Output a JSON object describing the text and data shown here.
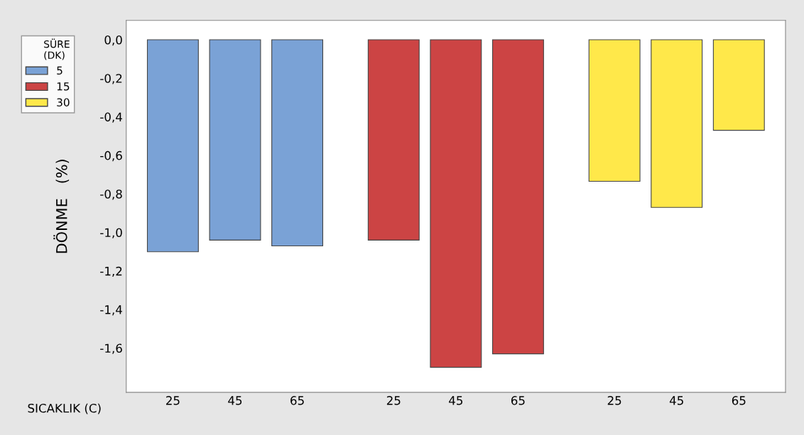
{
  "chart_data": {
    "type": "bar",
    "categories": [
      "25",
      "45",
      "65",
      "25",
      "45",
      "65",
      "25",
      "45",
      "65"
    ],
    "series": [
      {
        "name": "5",
        "color": "#7aa2d6",
        "values": [
          -1.1,
          -1.04,
          -1.07,
          null,
          null,
          null,
          null,
          null,
          null
        ]
      },
      {
        "name": "15",
        "color": "#cc4444",
        "values": [
          null,
          null,
          null,
          -1.04,
          -1.7,
          -1.63,
          null,
          null,
          null
        ]
      },
      {
        "name": "30",
        "color": "#ffe84a",
        "values": [
          null,
          null,
          null,
          null,
          null,
          null,
          -0.735,
          -0.87,
          -0.47
        ]
      }
    ],
    "xlabel": "SICAKLIK (C)",
    "ylabel": "DÖNME   (%)",
    "legend_title": "SÜRE\n(DK)",
    "ylim": [
      -1.83,
      0.1
    ],
    "yticks": [
      {
        "value": 0,
        "label": "0,0"
      },
      {
        "value": -0.2,
        "label": "-0,2"
      },
      {
        "value": -0.4,
        "label": "-0,4"
      },
      {
        "value": -0.6,
        "label": "-0,6"
      },
      {
        "value": -0.8,
        "label": "-0,8"
      },
      {
        "value": -1.0,
        "label": "-1,0"
      },
      {
        "value": -1.2,
        "label": "-1,2"
      },
      {
        "value": -1.4,
        "label": "-1,4"
      },
      {
        "value": -1.6,
        "label": "-1,6"
      }
    ],
    "grid": false,
    "legend": "top left"
  }
}
